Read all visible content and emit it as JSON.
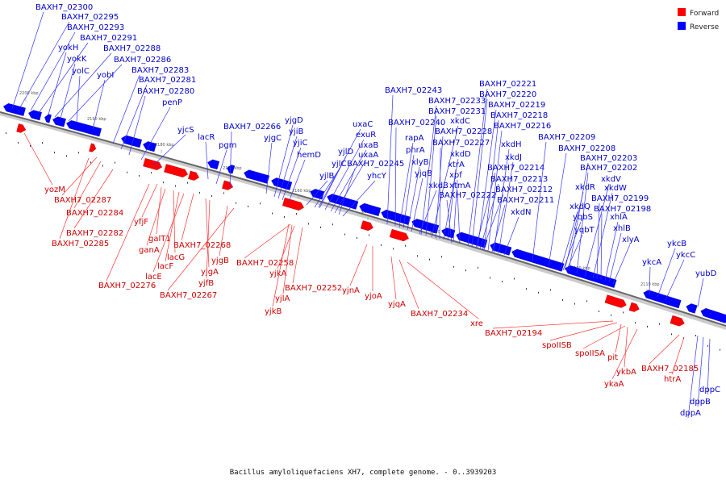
{
  "caption": "Bacillus amyloliquefaciens XH7, complete genome. - 0..3939203",
  "legend": [
    {
      "label": "Forward",
      "color": "#ff0000"
    },
    {
      "label": "Reverse",
      "color": "#0000ff"
    }
  ],
  "colors": {
    "forward": "#ff0000",
    "reverse": "#0000ff",
    "forward_line": "#ff3333",
    "reverse_line": "#3333ff",
    "backbone": "#888888"
  },
  "ticks": [
    "2200 kbp",
    "2190 kbp",
    "2180 kbp",
    "2170 kbp",
    "2160 kbp",
    "2150 kbp",
    "2140 kbp",
    "2130 kbp",
    "2120 kbp",
    "2110 kbp"
  ],
  "reverse_labels": [
    "BAXH7_02300",
    "BAXH7_02295",
    "BAXH7_02293",
    "BAXH7_02291",
    "yokH",
    "BAXH7_02288",
    "yokK",
    "BAXH7_02286",
    "yolC",
    "yobI",
    "BAXH7_02283",
    "BAXH7_02281",
    "BAXH7_02280",
    "penP",
    "yjcS",
    "lacR",
    "pgm",
    "BAXH7_02266",
    "yjgD",
    "yjgC",
    "yjiB",
    "yjiC",
    "hemD",
    "uxaC",
    "exuR",
    "uxaB",
    "yjlD",
    "uxaA",
    "yjlC",
    "BAXH7_02245",
    "yjlB",
    "yhcY",
    "BAXH7_02243",
    "BAXH7_02240",
    "rapA",
    "phrA",
    "xlyB",
    "yjqB",
    "xkdB",
    "BAXH7_02233",
    "BAXH7_02231",
    "xkdC",
    "BAXH7_02228",
    "BAXH7_02227",
    "xkdD",
    "xtrA",
    "xpf",
    "xtmA",
    "BAXH7_02222",
    "BAXH7_02221",
    "BAXH7_02220",
    "BAXH7_02219",
    "BAXH7_02218",
    "BAXH7_02216",
    "xkdH",
    "xkdJ",
    "BAXH7_02214",
    "BAXH7_02213",
    "BAXH7_02212",
    "BAXH7_02211",
    "xkdN",
    "BAXH7_02209",
    "BAXH7_02208",
    "BAXH7_02203",
    "BAXH7_02202",
    "xkdV",
    "xkdW",
    "xkdR",
    "xkdQ",
    "BAXH7_02199",
    "yqbS",
    "BAXH7_02198",
    "yqbT",
    "xhlA",
    "xhlB",
    "xlyA",
    "ykcB",
    "ykcA",
    "ykcC",
    "yubD",
    "dppC",
    "dppB",
    "dppA"
  ],
  "forward_labels": [
    "yozM",
    "BAXH7_02287",
    "BAXH7_02284",
    "BAXH7_02282",
    "yfjF",
    "BAXH7_02285",
    "galT1",
    "ganA",
    "BAXH7_02268",
    "lacG",
    "yjgB",
    "lacF",
    "yjgA",
    "lacE",
    "BAXH7_02276",
    "yjfB",
    "BAXH7_02267",
    "BAXH7_02258",
    "yjkA",
    "BAXH7_02252",
    "yjlA",
    "yjkB",
    "yjnA",
    "yjoA",
    "yjqA",
    "BAXH7_02234",
    "xre",
    "BAXH7_02194",
    "spoIISB",
    "spoIISA",
    "pit",
    "ykbA",
    "ykaA",
    "BAXH7_02185",
    "htrA"
  ]
}
